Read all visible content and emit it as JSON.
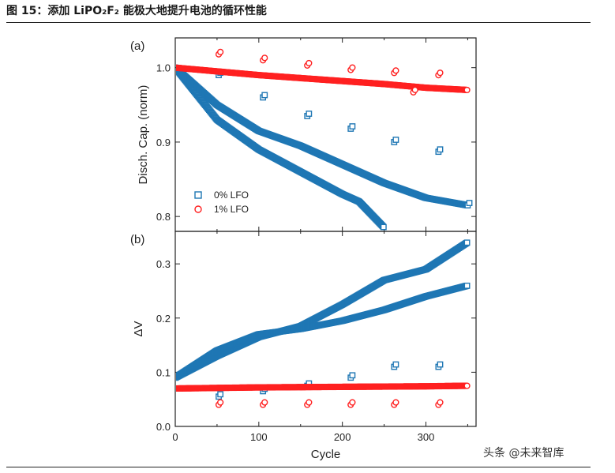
{
  "figure": {
    "title": "图 15：添加 LiPO₂F₂ 能极大地提升电池的循环性能",
    "watermark": "头条 @未来智库"
  },
  "colors": {
    "lfo0": "#1f77b4",
    "lfo1": "#ff2020"
  },
  "chart_data": [
    {
      "type": "scatter",
      "panel_label": "(a)",
      "title": "",
      "xlabel": "Cycle",
      "ylabel": "Disch. Cap. (norm)",
      "xlim": [
        0,
        360
      ],
      "ylim": [
        0.78,
        1.04
      ],
      "x_ticks": [
        0,
        100,
        200,
        300
      ],
      "y_ticks": [
        0.8,
        0.9,
        1.0
      ],
      "grid": false,
      "legend": {
        "position": "center-left",
        "entries": [
          "0% LFO",
          "1% LFO"
        ]
      },
      "series": [
        {
          "name": "0% LFO",
          "marker": "square",
          "x": [
            0,
            50,
            100,
            150,
            200,
            220,
            250
          ],
          "y": [
            1.0,
            0.93,
            0.89,
            0.86,
            0.83,
            0.82,
            0.785
          ]
        },
        {
          "name": "0% LFO",
          "marker": "square",
          "x": [
            0,
            50,
            100,
            150,
            200,
            250,
            300,
            350
          ],
          "y": [
            1.0,
            0.95,
            0.915,
            0.895,
            0.87,
            0.845,
            0.825,
            0.815
          ]
        },
        {
          "name": "0% LFO",
          "marker": "square",
          "x": [
            52,
            105,
            158,
            210,
            262,
            315,
            350
          ],
          "y": [
            0.99,
            0.96,
            0.935,
            0.918,
            0.9,
            0.887,
            0.815
          ]
        },
        {
          "name": "1% LFO",
          "marker": "circle",
          "x": [
            0,
            50,
            100,
            150,
            200,
            250,
            300,
            350
          ],
          "y": [
            1.0,
            0.995,
            0.99,
            0.986,
            0.982,
            0.978,
            0.973,
            0.97
          ]
        },
        {
          "name": "1% LFO",
          "marker": "circle",
          "x": [
            52,
            105,
            158,
            210,
            262,
            285,
            315
          ],
          "y": [
            1.018,
            1.01,
            1.003,
            0.997,
            0.993,
            0.967,
            0.99
          ]
        }
      ]
    },
    {
      "type": "scatter",
      "panel_label": "(b)",
      "title": "",
      "xlabel": "Cycle",
      "ylabel": "ΔV",
      "xlim": [
        0,
        360
      ],
      "ylim": [
        0.0,
        0.36
      ],
      "x_ticks": [
        0,
        100,
        200,
        300
      ],
      "y_ticks": [
        0.0,
        0.1,
        0.2,
        0.3
      ],
      "grid": false,
      "series": [
        {
          "name": "0% LFO",
          "marker": "square",
          "x": [
            0,
            50,
            100,
            150,
            200,
            250,
            300,
            350
          ],
          "y": [
            0.09,
            0.13,
            0.165,
            0.185,
            0.225,
            0.27,
            0.29,
            0.34
          ]
        },
        {
          "name": "0% LFO",
          "marker": "square",
          "x": [
            0,
            50,
            100,
            150,
            200,
            250,
            300,
            350
          ],
          "y": [
            0.09,
            0.14,
            0.17,
            0.18,
            0.195,
            0.215,
            0.24,
            0.26
          ]
        },
        {
          "name": "0% LFO",
          "marker": "square",
          "x": [
            52,
            105,
            158,
            210,
            262,
            315
          ],
          "y": [
            0.055,
            0.065,
            0.075,
            0.09,
            0.11,
            0.11
          ]
        },
        {
          "name": "1% LFO",
          "marker": "circle",
          "x": [
            0,
            100,
            200,
            300,
            350
          ],
          "y": [
            0.07,
            0.072,
            0.073,
            0.074,
            0.075
          ]
        },
        {
          "name": "1% LFO",
          "marker": "circle",
          "x": [
            52,
            105,
            158,
            210,
            262,
            315
          ],
          "y": [
            0.04,
            0.04,
            0.04,
            0.04,
            0.04,
            0.04
          ]
        }
      ]
    }
  ]
}
